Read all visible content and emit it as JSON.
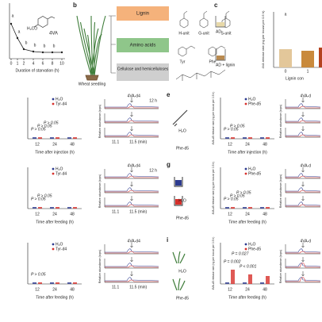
{
  "panel_a": {
    "substituent": "H₃CO",
    "molecule": "4VA",
    "x_ticks": [
      "0",
      "1",
      "2",
      "4",
      "6",
      "8",
      "10"
    ],
    "x_label": "Duration of starvation (h)",
    "letters": [
      "a",
      "a",
      "b",
      "b",
      "b",
      "b"
    ]
  },
  "panel_b": {
    "label": "b",
    "plant": "Wheat seedling",
    "lignin": "Lignin",
    "units": [
      "H-unit",
      "G-unit",
      "S-unit"
    ],
    "amino": "Amino acids",
    "amino_units": [
      "Tyr",
      "Phe"
    ],
    "cellulose": "Cellulose and hemicelluloses"
  },
  "panel_c": {
    "label": "c",
    "groups": [
      "AD",
      "AD + lignin"
    ],
    "y_label": "4VA release rate (ng per locust per 0.5 h)",
    "x_ticks": [
      "0",
      "1"
    ],
    "x_label": "Lignin con",
    "letter": "a"
  },
  "panel_d": {
    "legend": [
      "H₂O",
      "Tyr-d4"
    ],
    "p_values": [
      "P > 0.05",
      "P > 0.05",
      "P > 0.05"
    ],
    "x_ticks": [
      "12",
      "24",
      "48"
    ],
    "x_label": "Time after injection (h)",
    "chrom": {
      "title": "4VA-d4",
      "times": [
        "12 h"
      ],
      "y_label": "Relative abundance (kcps)",
      "x_ticks": [
        "11.1",
        "11.5 (min)"
      ]
    }
  },
  "panel_e": {
    "label": "e",
    "icon_labels": [
      "H₂O",
      "Phe-d5"
    ],
    "y_label": "4VA-d5 release rate (ng per locust per 0.5 h)",
    "legend": [
      "H₂O",
      "Phe-d5"
    ],
    "p_values": [
      "P > 0.05",
      "P > 0.05"
    ],
    "x_ticks": [
      "12",
      "24",
      "48"
    ],
    "x_label": "Time after injection (h)",
    "chrom": {
      "title": "4VA-d",
      "times": [],
      "y_label": "Relative abundance (kcps)",
      "x_ticks": []
    }
  },
  "panel_f": {
    "legend": [
      "H₂O",
      "Tyr-d4"
    ],
    "p_values": [
      "P > 0.05",
      "P > 0.05"
    ],
    "x_ticks": [
      "12",
      "24",
      "48"
    ],
    "x_label": "Time after feeding (h)",
    "chrom": {
      "title": "4VA-d4",
      "times": [
        "12 h"
      ],
      "y_label": "Relative abundance (kcps)",
      "x_ticks": [
        "11.1",
        "11.5 (min)"
      ]
    }
  },
  "panel_g": {
    "label": "g",
    "icon_labels": [
      "H₂O",
      "Phe-d5"
    ],
    "y_label": "4VA-d5 release rate (ng per locust per 0.5 h)",
    "legend": [
      "H₂O",
      "Phe-d5"
    ],
    "p_values": [
      "P > 0.05",
      "P > 0.05",
      "P > 0.05"
    ],
    "x_ticks": [
      "12",
      "24",
      "48"
    ],
    "x_label": "Time after feeding (h)",
    "chrom": {
      "title": "4VA-d",
      "times": [],
      "y_label": "Relative abundance (kcps)",
      "x_ticks": []
    }
  },
  "panel_h": {
    "legend": [
      "H₂O",
      "Tyr-d4"
    ],
    "p_values": [
      "P > 0.05"
    ],
    "x_ticks": [
      "12",
      "24",
      "48"
    ],
    "x_label": "Time after feeding (h)",
    "chrom": {
      "title": "4VA-d4",
      "times": [],
      "y_label": "Relative abundance (kcps)",
      "x_ticks": [
        "11.1",
        "11.5 (min)"
      ]
    }
  },
  "panel_i": {
    "label": "i",
    "icon_labels": [
      "H₂O",
      "Phe-d5"
    ],
    "y_label": "4VA-d5 release rate (ng per locust per 0.5 h)",
    "legend": [
      "H₂O",
      "Phe-d5"
    ],
    "p_values": [
      "P = 0.002",
      "P = 0.027",
      "P < 0.001"
    ],
    "x_ticks": [
      "12",
      "24",
      "48"
    ],
    "x_label": "Time after feeding (h)",
    "chrom": {
      "title": "4VA-d",
      "times": [],
      "y_label": "Relative abundance (kcps)",
      "x_ticks": []
    }
  }
}
